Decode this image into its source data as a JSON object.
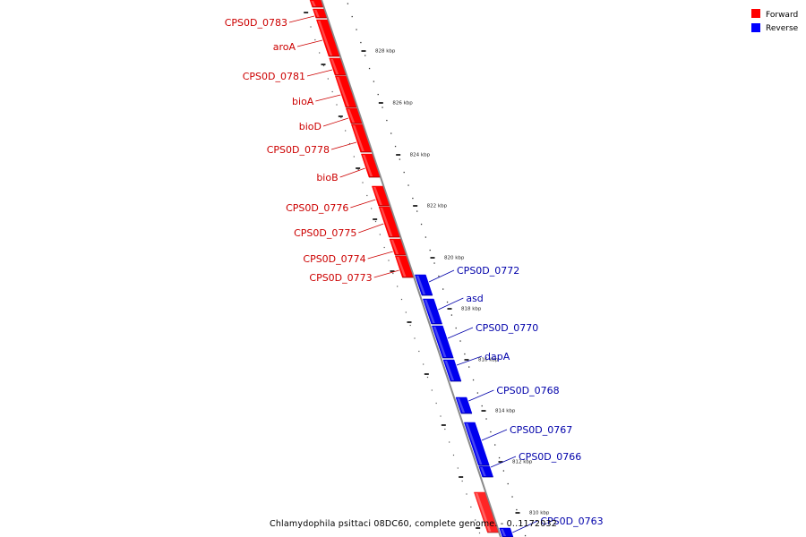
{
  "caption": "Chlamydophila psittaci 08DC60, complete genome. - 0..1172032",
  "legend": [
    {
      "label": "Forward",
      "color": "#ff0000"
    },
    {
      "label": "Reverse",
      "color": "#0000ff"
    }
  ],
  "colors": {
    "forward": "#ff0000",
    "forward_label": "#cc0000",
    "reverse": "#0000ee",
    "reverse_label": "#0000aa",
    "backbone": "#888888"
  },
  "ticks": [
    {
      "label": "828 kbp"
    },
    {
      "label": "826 kbp"
    },
    {
      "label": "824 kbp"
    },
    {
      "label": "822 kbp"
    },
    {
      "label": "820 kbp"
    },
    {
      "label": "818 kbp"
    },
    {
      "label": "816 kbp"
    },
    {
      "label": "814 kbp"
    },
    {
      "label": "812 kbp"
    },
    {
      "label": "810 kbp"
    }
  ],
  "forward_genes": [
    {
      "name": "CPS0D_0783"
    },
    {
      "name": "aroA"
    },
    {
      "name": "CPS0D_0781"
    },
    {
      "name": "bioA"
    },
    {
      "name": "bioD"
    },
    {
      "name": "CPS0D_0778"
    },
    {
      "name": "bioB"
    },
    {
      "name": "CPS0D_0776"
    },
    {
      "name": "CPS0D_0775"
    },
    {
      "name": "CPS0D_0774"
    },
    {
      "name": "CPS0D_0773"
    }
  ],
  "reverse_genes": [
    {
      "name": "CPS0D_0772"
    },
    {
      "name": "asd"
    },
    {
      "name": "CPS0D_0770"
    },
    {
      "name": "dapA"
    },
    {
      "name": "CPS0D_0768"
    },
    {
      "name": "CPS0D_0767"
    },
    {
      "name": "CPS0D_0766"
    },
    {
      "name": "CPS0D_0763"
    }
  ]
}
